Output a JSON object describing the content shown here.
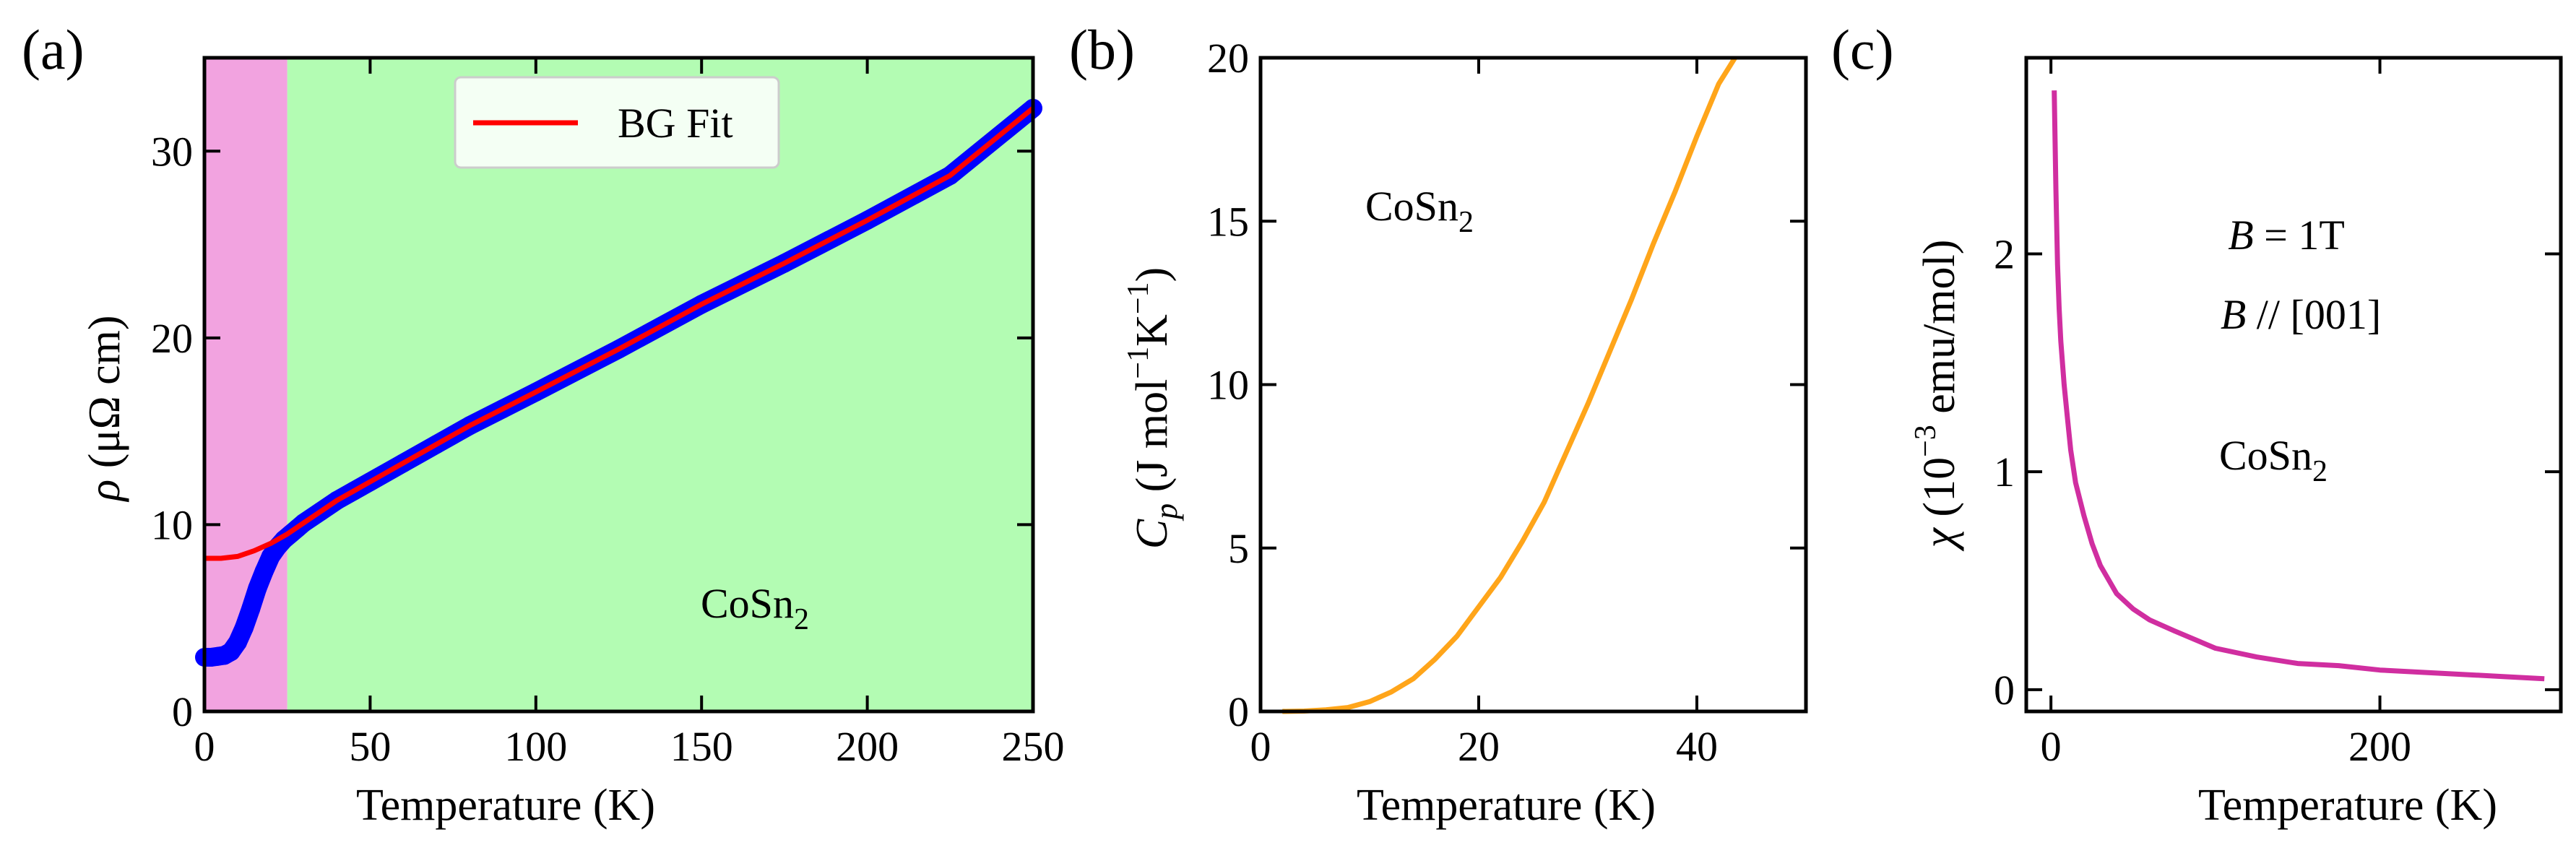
{
  "figure": {
    "colors": {
      "pink_region": "#f2a3e0",
      "green_region": "#b3fcb3",
      "data_blue": "#0000ff",
      "fit_red": "#ff0000",
      "cp_orange": "#ffa51a",
      "chi_magenta": "#d02ea0"
    }
  },
  "chart_data": [
    {
      "type": "line",
      "panel_label": "(a)",
      "xlabel": "Temperature (K)",
      "ylabel": "ρ (μΩ cm)",
      "ylabel_symbol": "ρ",
      "ylabel_units": "(μΩ cm)",
      "xlim": [
        0,
        250
      ],
      "ylim": [
        0,
        35
      ],
      "x_ticks": [
        0,
        50,
        100,
        150,
        200,
        250
      ],
      "y_ticks": [
        0,
        10,
        20,
        30
      ],
      "annotation": "CoSn",
      "annotation_sub": "2",
      "legend": {
        "position": "top-center",
        "entries": [
          "BG Fit"
        ]
      },
      "shaded_regions": [
        {
          "x": [
            0,
            25
          ],
          "color": "pink"
        },
        {
          "x": [
            25,
            250
          ],
          "color": "green"
        }
      ],
      "series": [
        {
          "name": "Data",
          "x": [
            0,
            2,
            4,
            6,
            8,
            10,
            12,
            14,
            16,
            18,
            20,
            22,
            24,
            26,
            28,
            30,
            35,
            40,
            45,
            50,
            60,
            70,
            80,
            90,
            100,
            125,
            150,
            175,
            200,
            225,
            250
          ],
          "y": [
            2.9,
            2.9,
            2.95,
            3.0,
            3.2,
            3.7,
            4.5,
            5.5,
            6.6,
            7.5,
            8.3,
            8.8,
            9.2,
            9.5,
            9.8,
            10.1,
            10.7,
            11.3,
            11.8,
            12.3,
            13.3,
            14.3,
            15.3,
            16.2,
            17.1,
            19.4,
            21.8,
            24.0,
            26.3,
            28.7,
            32.3
          ]
        },
        {
          "name": "BG Fit",
          "x": [
            0,
            5,
            10,
            15,
            20,
            25,
            30,
            35,
            40,
            45,
            50,
            60,
            70,
            80,
            90,
            100,
            125,
            150,
            175,
            200,
            225,
            250
          ],
          "y": [
            8.2,
            8.2,
            8.3,
            8.6,
            9.0,
            9.5,
            10.1,
            10.7,
            11.3,
            11.8,
            12.3,
            13.3,
            14.3,
            15.3,
            16.2,
            17.1,
            19.4,
            21.8,
            24.0,
            26.3,
            28.7,
            32.3
          ]
        }
      ]
    },
    {
      "type": "line",
      "panel_label": "(b)",
      "xlabel": "Temperature (K)",
      "ylabel": "Cp (J mol−1K−1)",
      "ylabel_sym_main": "C",
      "ylabel_sym_sub": "p",
      "ylabel_part1": " (J mol",
      "ylabel_exp1": "−1",
      "ylabel_part2": "K",
      "ylabel_exp2": "−1",
      "ylabel_part3": ")",
      "xlim": [
        0,
        50
      ],
      "ylim": [
        0,
        20
      ],
      "x_ticks": [
        0,
        20,
        40
      ],
      "y_ticks": [
        0,
        5,
        10,
        15,
        20
      ],
      "annotation": "CoSn",
      "annotation_sub": "2",
      "series": [
        {
          "name": "Cp",
          "x": [
            2,
            4,
            6,
            8,
            10,
            12,
            14,
            16,
            18,
            20,
            22,
            24,
            26,
            28,
            30,
            32,
            34,
            36,
            38,
            40,
            42,
            43.5
          ],
          "y": [
            0.0,
            0.01,
            0.05,
            0.12,
            0.3,
            0.6,
            1.0,
            1.6,
            2.3,
            3.2,
            4.1,
            5.2,
            6.4,
            7.9,
            9.4,
            11.0,
            12.6,
            14.3,
            15.9,
            17.6,
            19.2,
            20.0
          ]
        }
      ]
    },
    {
      "type": "line",
      "panel_label": "(c)",
      "xlabel": "Temperature (K)",
      "ylabel": "χ (10−3 emu/mol)",
      "ylabel_symbol": "χ",
      "ylabel_part1": " (10",
      "ylabel_exp": "−3",
      "ylabel_part2": " emu/mol)",
      "xlim": [
        -15,
        310
      ],
      "ylim": [
        -0.1,
        2.9
      ],
      "x_ticks": [
        0,
        200
      ],
      "y_ticks": [
        0,
        1,
        2
      ],
      "annotations": {
        "field": {
          "italic": "B",
          "text": " = 1T"
        },
        "direction": {
          "italic": "B",
          "text": " // [001]"
        },
        "compound": "CoSn",
        "compound_sub": "2"
      },
      "series": [
        {
          "name": "chi",
          "x": [
            2,
            3,
            4,
            5,
            6,
            8,
            10,
            12,
            15,
            20,
            25,
            30,
            40,
            50,
            60,
            75,
            100,
            125,
            150,
            175,
            200,
            225,
            250,
            275,
            300
          ],
          "y": [
            2.75,
            2.3,
            1.95,
            1.75,
            1.6,
            1.4,
            1.25,
            1.1,
            0.95,
            0.8,
            0.67,
            0.57,
            0.44,
            0.37,
            0.32,
            0.27,
            0.19,
            0.15,
            0.12,
            0.11,
            0.09,
            0.08,
            0.07,
            0.06,
            0.05
          ]
        }
      ]
    }
  ]
}
